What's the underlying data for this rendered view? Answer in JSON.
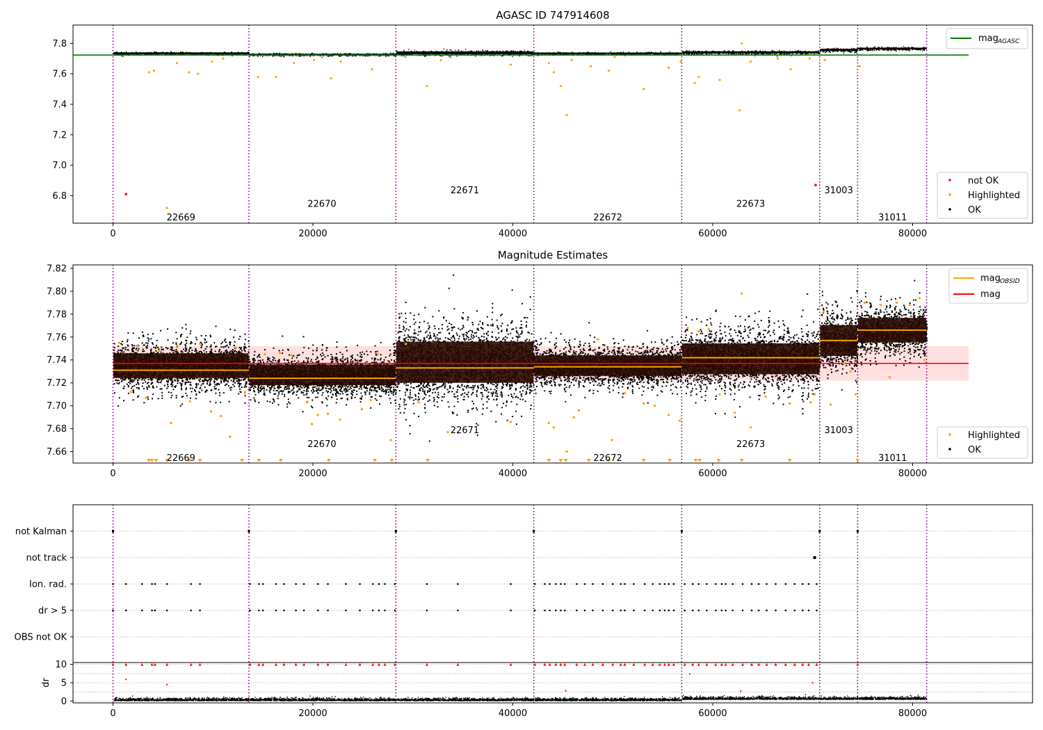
{
  "chart_data": [
    {
      "type": "scatter",
      "title": "AGASC ID 747914608",
      "xlim": [
        -4000,
        92000
      ],
      "ylim": [
        6.62,
        7.92
      ],
      "xticks": [
        0,
        20000,
        40000,
        60000,
        80000
      ],
      "yticks": [
        6.8,
        7.0,
        7.2,
        7.4,
        7.6,
        7.8
      ],
      "obsid_boundaries": [
        0,
        13600,
        28300,
        42100,
        56900,
        70700,
        74500,
        81400
      ],
      "segments": [
        {
          "x0": 0,
          "x1": 13600,
          "center": 7.735,
          "spread": 0.012,
          "noise_x": 2.5
        },
        {
          "x0": 13600,
          "x1": 28300,
          "center": 7.727,
          "spread": 0.01,
          "noise_x": 2.5
        },
        {
          "x0": 28300,
          "x1": 42100,
          "center": 7.738,
          "spread": 0.02,
          "noise_x": 3.5
        },
        {
          "x0": 42100,
          "x1": 56900,
          "center": 7.735,
          "spread": 0.01,
          "noise_x": 2.5
        },
        {
          "x0": 56900,
          "x1": 70700,
          "center": 7.741,
          "spread": 0.015,
          "noise_x": 2.5
        },
        {
          "x0": 70700,
          "x1": 74500,
          "center": 7.757,
          "spread": 0.015,
          "noise_x": 3
        },
        {
          "x0": 74500,
          "x1": 81400,
          "center": 7.766,
          "spread": 0.012,
          "noise_x": 3
        }
      ],
      "obsid_labels": [
        {
          "text": "22669",
          "x": 6800,
          "y": 6.66
        },
        {
          "text": "22670",
          "x": 20900,
          "y": 6.75
        },
        {
          "text": "22671",
          "x": 35200,
          "y": 6.84
        },
        {
          "text": "22672",
          "x": 49500,
          "y": 6.66
        },
        {
          "text": "22673",
          "x": 63800,
          "y": 6.75
        },
        {
          "text": "31003",
          "x": 72600,
          "y": 6.84
        },
        {
          "text": "31011",
          "x": 78000,
          "y": 6.66
        }
      ],
      "mag_agasc": {
        "value": 7.723,
        "x1": 85600,
        "color": "#008000",
        "legend_main": "mag",
        "legend_sub": "AGASC"
      },
      "not_ok": [
        [
          1300,
          6.81
        ],
        [
          70300,
          6.87
        ]
      ],
      "highlighted": [
        [
          3600,
          7.61
        ],
        [
          4100,
          7.62
        ],
        [
          5400,
          6.72
        ],
        [
          6400,
          7.67
        ],
        [
          7600,
          7.61
        ],
        [
          8500,
          7.6
        ],
        [
          9900,
          7.68
        ],
        [
          11000,
          7.7
        ],
        [
          14500,
          7.58
        ],
        [
          16300,
          7.58
        ],
        [
          18100,
          7.67
        ],
        [
          20100,
          7.69
        ],
        [
          21800,
          7.57
        ],
        [
          22800,
          7.68
        ],
        [
          25900,
          7.63
        ],
        [
          31400,
          7.52
        ],
        [
          32800,
          7.69
        ],
        [
          39800,
          7.66
        ],
        [
          43600,
          7.67
        ],
        [
          44100,
          7.61
        ],
        [
          44800,
          7.52
        ],
        [
          45400,
          7.33
        ],
        [
          45900,
          7.69
        ],
        [
          47800,
          7.65
        ],
        [
          49600,
          7.62
        ],
        [
          50200,
          7.71
        ],
        [
          53100,
          7.5
        ],
        [
          55600,
          7.64
        ],
        [
          56800,
          7.68
        ],
        [
          58200,
          7.54
        ],
        [
          58600,
          7.58
        ],
        [
          60700,
          7.56
        ],
        [
          62700,
          7.36
        ],
        [
          62900,
          7.8
        ],
        [
          63800,
          7.68
        ],
        [
          66500,
          7.7
        ],
        [
          67800,
          7.63
        ],
        [
          69700,
          7.7
        ],
        [
          71200,
          7.69
        ],
        [
          74700,
          7.65
        ]
      ],
      "legend": [
        {
          "label": "not OK",
          "color": "#ff0000"
        },
        {
          "label": "Highlighted",
          "color": "#ffa500"
        },
        {
          "label": "OK",
          "color": "#000000"
        }
      ]
    },
    {
      "type": "scatter",
      "title": "Magnitude Estimates",
      "xlim": [
        -4000,
        92000
      ],
      "ylim": [
        7.65,
        7.823
      ],
      "xticks": [
        0,
        20000,
        40000,
        60000,
        80000
      ],
      "yticks": [
        7.66,
        7.68,
        7.7,
        7.72,
        7.74,
        7.76,
        7.78,
        7.8,
        7.82
      ],
      "mag": {
        "value": 7.737,
        "band": [
          7.722,
          7.752
        ],
        "x0": 0,
        "x1": 85600,
        "color": "#ff0000"
      },
      "mag_obsid": [
        {
          "x0": 0,
          "x1": 13600,
          "value": 7.731
        },
        {
          "x0": 13600,
          "x1": 28300,
          "value": 7.724
        },
        {
          "x0": 28300,
          "x1": 42100,
          "value": 7.733
        },
        {
          "x0": 42100,
          "x1": 56900,
          "value": 7.734
        },
        {
          "x0": 56900,
          "x1": 70700,
          "value": 7.742
        },
        {
          "x0": 70700,
          "x1": 74500,
          "value": 7.757
        },
        {
          "x0": 74500,
          "x1": 81400,
          "value": 7.766
        }
      ],
      "obsid_labels": [
        {
          "text": "22669",
          "x": 6800,
          "y": 7.655
        },
        {
          "text": "22670",
          "x": 20900,
          "y": 7.667
        },
        {
          "text": "22671",
          "x": 35200,
          "y": 7.679
        },
        {
          "text": "22672",
          "x": 49500,
          "y": 7.655
        },
        {
          "text": "22673",
          "x": 63800,
          "y": 7.667
        },
        {
          "text": "31003",
          "x": 72600,
          "y": 7.679
        },
        {
          "text": "31011",
          "x": 78000,
          "y": 7.655
        }
      ],
      "highlighted": [
        [
          600,
          7.755
        ],
        [
          1800,
          7.712
        ],
        [
          2500,
          7.752
        ],
        [
          3300,
          7.707
        ],
        [
          4600,
          7.748
        ],
        [
          5800,
          7.685
        ],
        [
          6400,
          7.751
        ],
        [
          7700,
          7.704
        ],
        [
          8700,
          7.754
        ],
        [
          9800,
          7.695
        ],
        [
          10800,
          7.691
        ],
        [
          11700,
          7.673
        ],
        [
          12300,
          7.751
        ],
        [
          13200,
          7.712
        ],
        [
          15200,
          7.745
        ],
        [
          16700,
          7.746
        ],
        [
          17900,
          7.744
        ],
        [
          19400,
          7.703
        ],
        [
          19900,
          7.684
        ],
        [
          20500,
          7.692
        ],
        [
          21500,
          7.693
        ],
        [
          22700,
          7.688
        ],
        [
          24900,
          7.697
        ],
        [
          25800,
          7.705
        ],
        [
          26500,
          7.745
        ],
        [
          27800,
          7.67
        ],
        [
          29300,
          7.754
        ],
        [
          30600,
          7.703
        ],
        [
          33500,
          7.677
        ],
        [
          34500,
          7.676
        ],
        [
          39800,
          7.686
        ],
        [
          43600,
          7.685
        ],
        [
          44100,
          7.681
        ],
        [
          45400,
          7.66
        ],
        [
          46100,
          7.69
        ],
        [
          46600,
          7.696
        ],
        [
          48500,
          7.758
        ],
        [
          49900,
          7.67
        ],
        [
          51200,
          7.711
        ],
        [
          53100,
          7.702
        ],
        [
          54200,
          7.7
        ],
        [
          55600,
          7.692
        ],
        [
          56700,
          7.687
        ],
        [
          57500,
          7.768
        ],
        [
          58600,
          7.765
        ],
        [
          59600,
          7.767
        ],
        [
          60700,
          7.71
        ],
        [
          62200,
          7.694
        ],
        [
          62900,
          7.798
        ],
        [
          63800,
          7.681
        ],
        [
          65300,
          7.708
        ],
        [
          67700,
          7.702
        ],
        [
          69800,
          7.703
        ],
        [
          70200,
          7.71
        ],
        [
          71100,
          7.782
        ],
        [
          71800,
          7.701
        ],
        [
          73100,
          7.737
        ],
        [
          73800,
          7.73
        ],
        [
          74300,
          7.71
        ],
        [
          75200,
          7.79
        ],
        [
          76800,
          7.788
        ],
        [
          77700,
          7.725
        ],
        [
          78400,
          7.79
        ],
        [
          79700,
          7.788
        ],
        [
          80700,
          7.794
        ],
        [
          81200,
          7.74
        ]
      ],
      "highlighted_below": [
        3600,
        3900,
        4300,
        5400,
        7600,
        8700,
        12900,
        14600,
        16800,
        21600,
        26200,
        27900,
        31500,
        43600,
        44800,
        45300,
        47600,
        49600,
        53100,
        55700,
        58300,
        58700,
        60600,
        62900,
        67700,
        74500
      ],
      "legend": [
        {
          "label": "Highlighted",
          "color": "#ffa500"
        },
        {
          "label": "OK",
          "color": "#000000"
        }
      ],
      "legend_lines": [
        {
          "main": "mag",
          "sub": "OBSID",
          "color": "#ffa500"
        },
        {
          "main": "mag",
          "sub": "",
          "color": "#ff0000"
        }
      ]
    },
    {
      "type": "scatter",
      "xlim": [
        -4000,
        92000
      ],
      "xticks": [
        0,
        20000,
        40000,
        60000,
        80000
      ],
      "flag_rows": [
        "not Kalman",
        "not track",
        "Ion. rad.",
        "dr > 5",
        "OBS not OK"
      ],
      "not_kalman_x": [
        0,
        13600,
        28300,
        42100,
        56900,
        70700,
        74500
      ],
      "not_track_x": [
        70200
      ],
      "flag_x": [
        0,
        1300,
        2900,
        3900,
        4200,
        5400,
        7800,
        8700,
        13700,
        14600,
        15000,
        16300,
        17100,
        18300,
        19100,
        20500,
        21500,
        23300,
        24700,
        26000,
        26600,
        27200,
        28200,
        31400,
        34500,
        39800,
        42200,
        43200,
        43700,
        44300,
        44800,
        45200,
        46400,
        47200,
        48000,
        49000,
        50000,
        50800,
        51200,
        52100,
        53200,
        54000,
        54700,
        55200,
        55600,
        56100,
        57200,
        58000,
        58600,
        59400,
        60300,
        60900,
        61300,
        62000,
        63000,
        63900,
        64600,
        65400,
        66300,
        67300,
        68200,
        69000,
        69600,
        70400
      ],
      "dr_ylabel": "dr",
      "dr_ylim": [
        -0.5,
        10.5
      ],
      "dr_yticks": [
        0,
        5,
        10
      ],
      "dr_high_x": [
        0,
        1300,
        2900,
        3900,
        4200,
        5400,
        7800,
        8700,
        13700,
        14600,
        15000,
        16300,
        17100,
        18300,
        19100,
        20500,
        21500,
        23300,
        24700,
        26000,
        26600,
        27200,
        28200,
        31400,
        34500,
        39800,
        42200,
        43200,
        43700,
        44300,
        44800,
        45200,
        46400,
        47200,
        48000,
        49000,
        50000,
        50800,
        51200,
        52100,
        53200,
        54000,
        54700,
        55200,
        55600,
        56100,
        57200,
        58000,
        58600,
        59400,
        60300,
        60900,
        61300,
        62000,
        63000,
        63900,
        64600,
        65400,
        66300,
        67300,
        68200,
        69000,
        69600,
        70400,
        74500
      ],
      "dr_outliers": [
        [
          1300,
          5.9
        ],
        [
          5400,
          4.5
        ],
        [
          45300,
          2.8
        ],
        [
          57700,
          7.4
        ],
        [
          62800,
          2.7
        ],
        [
          70000,
          5.0
        ]
      ]
    }
  ]
}
